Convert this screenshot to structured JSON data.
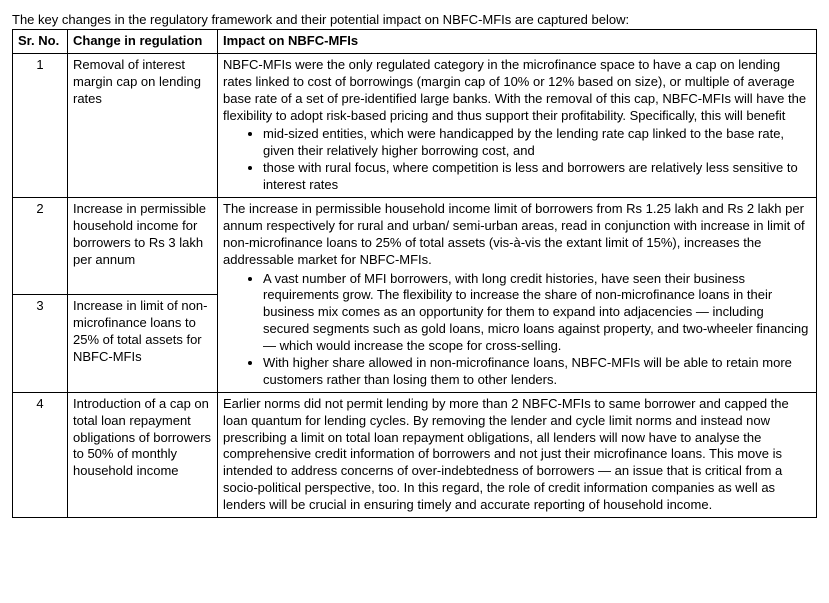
{
  "intro": "The key changes in the regulatory framework and their potential impact on NBFC-MFIs are captured below:",
  "table": {
    "headers": {
      "srno": "Sr. No.",
      "change": "Change in regulation",
      "impact": "Impact on NBFC-MFIs"
    },
    "rows": [
      {
        "srno": "1",
        "change": "Removal of interest margin cap on lending rates",
        "impact_para": "NBFC-MFIs were the only regulated category in the microfinance space to have a cap on lending rates linked to cost of borrowings (margin cap of 10% or 12% based on size), or multiple of average base rate of a set of pre-identified large banks. With the removal of this cap, NBFC-MFIs will have the flexibility to adopt risk-based pricing and thus support their profitability. Specifically, this will benefit",
        "bullets": [
          "mid-sized entities, which were handicapped by the lending rate cap linked to the base rate, given their relatively higher borrowing cost, and",
          "those with rural focus, where competition is less and borrowers are relatively less sensitive to interest rates"
        ],
        "rowspan": 1
      },
      {
        "srno": "2",
        "change": "Increase in permissible household income for borrowers to Rs 3 lakh per annum",
        "impact_para": "The increase in permissible household income limit of borrowers from Rs 1.25 lakh and Rs 2 lakh per annum respectively for rural and urban/ semi-urban areas, read in conjunction with increase in limit of non-microfinance loans to 25% of total assets (vis-à-vis the extant limit of 15%), increases the addressable market for NBFC-MFIs.",
        "bullets": [],
        "rowspan": 1,
        "merge_impact": true
      },
      {
        "srno": "3",
        "change": "Increase in limit of non-microfinance loans to 25% of total assets for NBFC-MFIs",
        "impact_para": "",
        "bullets": [
          "A vast number of MFI borrowers, with long credit histories, have seen their business requirements grow. The flexibility to increase the share of non-microfinance loans in their business mix comes as an opportunity for them to expand into adjacencies — including secured segments such as gold loans, micro loans against property, and two-wheeler financing — which would increase the scope for cross-selling.",
          "With higher share allowed in non-microfinance loans, NBFC-MFIs will be able to retain more customers rather than losing them to other lenders."
        ],
        "rowspan": 1
      },
      {
        "srno": "4",
        "change": "Introduction of a cap on total loan repayment obligations of borrowers to 50% of monthly household income",
        "impact_para": "Earlier norms did not permit lending by more than 2 NBFC-MFIs to same borrower and capped the loan quantum for lending cycles. By removing the lender and cycle limit norms and instead now prescribing a limit on total loan repayment obligations, all lenders will now have to analyse the comprehensive credit information of borrowers and not just their microfinance loans. This move is intended to address concerns of over-indebtedness of borrowers — an issue that is critical from a socio-political perspective, too. In this regard, the role of credit information companies as well as lenders will be crucial in ensuring timely and accurate reporting of household income.",
        "bullets": [],
        "rowspan": 1
      }
    ]
  }
}
